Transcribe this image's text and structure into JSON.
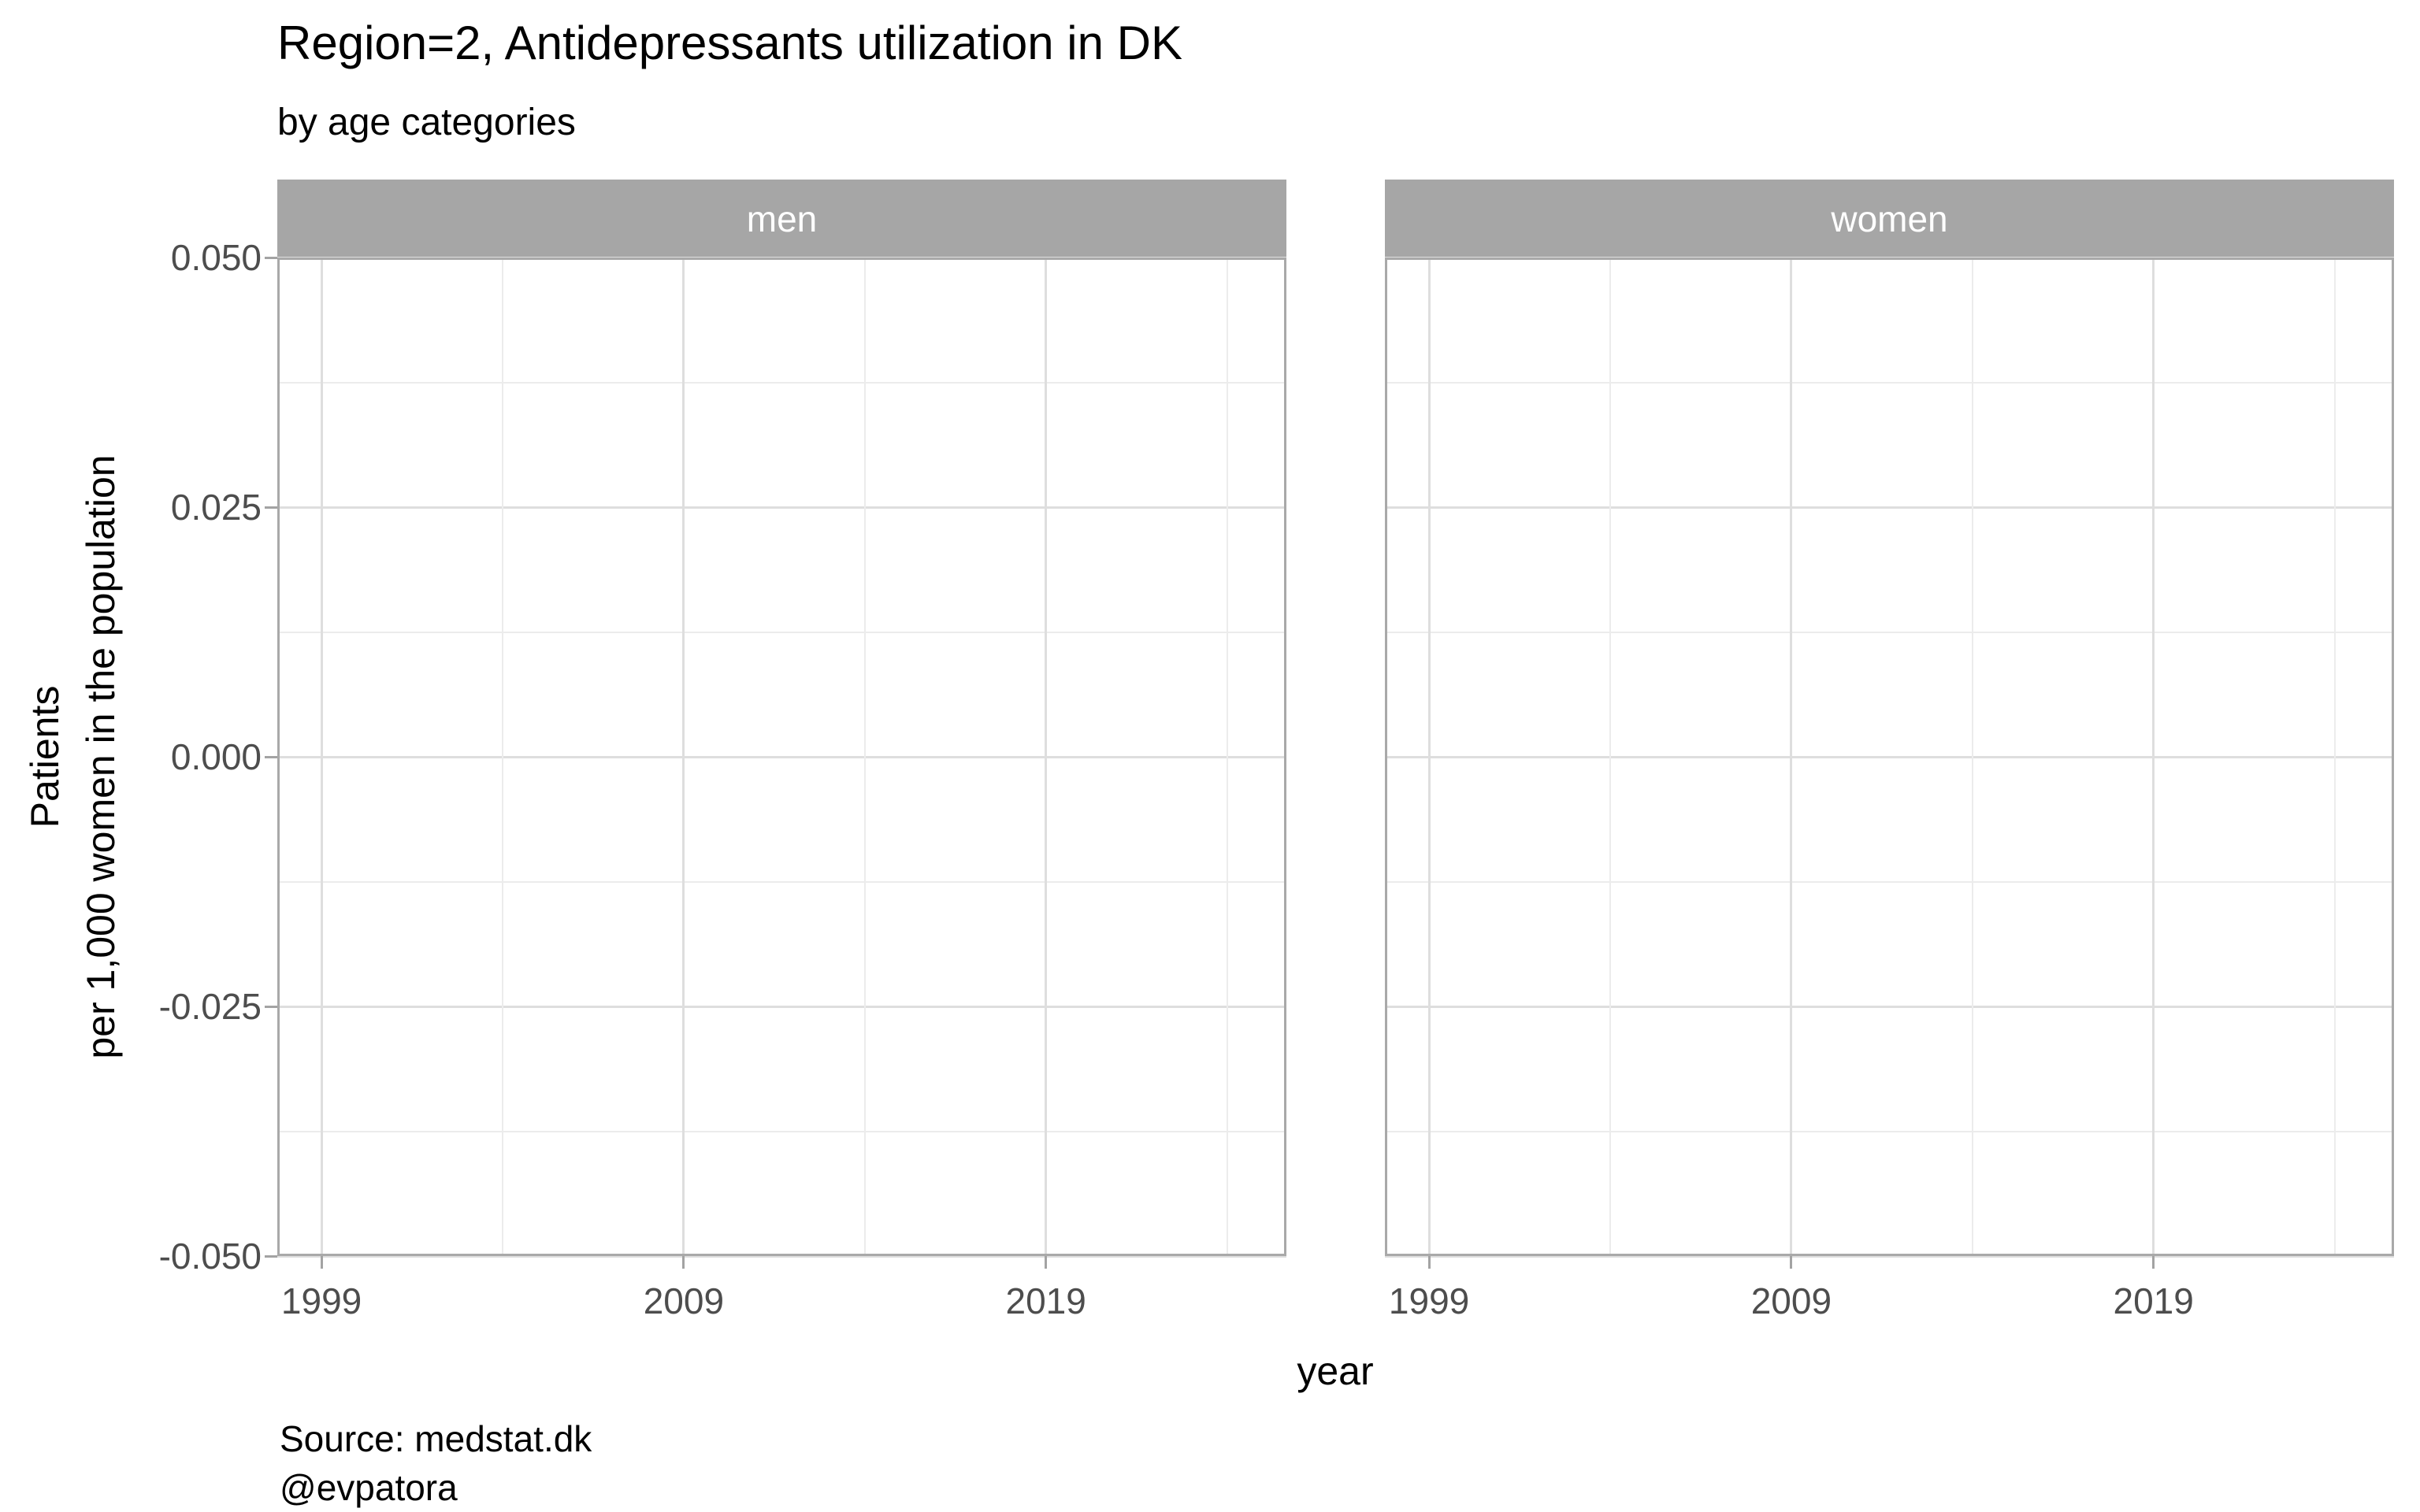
{
  "header": {
    "title": "Region=2, Antidepressants utilization in DK",
    "subtitle": "by age categories"
  },
  "caption": "Source: medstat.dk\n@evpatora",
  "chart_data": {
    "type": "line",
    "title": "Region=2, Antidepressants utilization in DK",
    "subtitle": "by age categories",
    "facets": [
      "men",
      "women"
    ],
    "series": [],
    "xlabel": "year",
    "ylabel": "Patients\nper 1,000 women in the population",
    "xlim": [
      1997.78,
      2025.64
    ],
    "ylim": [
      -0.05,
      0.05
    ],
    "x_major_ticks": [
      1999,
      2009,
      2019
    ],
    "x_minor_ticks": [
      2004,
      2014,
      2024
    ],
    "y_major_ticks": [
      0.05,
      0.025,
      0,
      -0.025,
      -0.05
    ],
    "y_tick_labels": [
      "0.050",
      "0.025",
      "0.000",
      "-0.025",
      "-0.050"
    ],
    "y_minor_ticks": [
      0.0375,
      0.0125,
      -0.0125,
      -0.0375
    ],
    "grid": true,
    "legend_position": "none"
  },
  "colors": {
    "background": "#ffffff",
    "strip_fill": "#a6a6a6",
    "strip_text": "#ffffff",
    "panel_border": "#a9a9a9",
    "grid_major": "#dedede",
    "grid_minor": "#ececec",
    "axis_text": "#4d4d4d",
    "tick_mark": "#a3a3a3",
    "text": "#000000"
  }
}
